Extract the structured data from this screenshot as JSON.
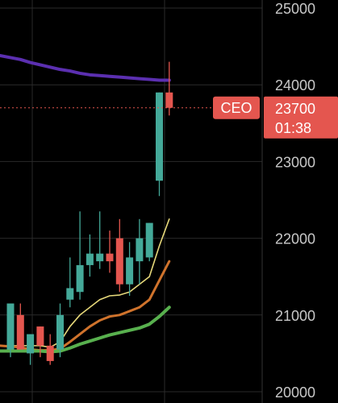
{
  "chart_data": {
    "type": "candlestick",
    "title": "",
    "xlabel": "",
    "ylabel": "",
    "ylim": [
      20000,
      25000
    ],
    "y_ticks": [
      "25000",
      "24000",
      "23000",
      "22000",
      "21000",
      "20000"
    ],
    "grid": true,
    "colors": {
      "up": "#44a999",
      "down": "#e4564f",
      "background": "#000000",
      "grid": "#2a2a2a"
    },
    "candles": [
      {
        "open": 20550,
        "high": 21150,
        "low": 20450,
        "close": 21150
      },
      {
        "open": 21000,
        "high": 21150,
        "low": 20550,
        "close": 20550
      },
      {
        "open": 20500,
        "high": 20750,
        "low": 20350,
        "close": 20750
      },
      {
        "open": 20850,
        "high": 20850,
        "low": 20450,
        "close": 20600
      },
      {
        "open": 20600,
        "high": 20750,
        "low": 20350,
        "close": 20400
      },
      {
        "open": 20550,
        "high": 21150,
        "low": 20450,
        "close": 21000
      },
      {
        "open": 21200,
        "high": 21750,
        "low": 21100,
        "close": 21350
      },
      {
        "open": 21300,
        "high": 22350,
        "low": 21200,
        "close": 21650
      },
      {
        "open": 21650,
        "high": 22050,
        "low": 21500,
        "close": 21800
      },
      {
        "open": 21700,
        "high": 22350,
        "low": 21600,
        "close": 21800
      },
      {
        "open": 21800,
        "high": 22100,
        "low": 21550,
        "close": 21700
      },
      {
        "open": 22000,
        "high": 22250,
        "low": 21300,
        "close": 21400
      },
      {
        "open": 21400,
        "high": 21950,
        "low": 21250,
        "close": 21750
      },
      {
        "open": 21700,
        "high": 22250,
        "low": 21400,
        "close": 22000
      },
      {
        "open": 21750,
        "high": 22200,
        "low": 21700,
        "close": 22200
      },
      {
        "open": 22750,
        "high": 23900,
        "low": 22550,
        "close": 23900
      },
      {
        "open": 23900,
        "high": 24300,
        "low": 23600,
        "close": 23700
      }
    ],
    "series": [
      {
        "color": "#5b2fb0",
        "values": [
          24380,
          24330,
          24290,
          24260,
          24230,
          24200,
          24180,
          24150,
          24130,
          24120,
          24110,
          24100,
          24090,
          24080,
          24070,
          24060,
          24060
        ]
      },
      {
        "color": "#e6d87a",
        "values": [
          20600,
          20600,
          20600,
          20600,
          20580,
          20650,
          20850,
          21000,
          21100,
          21200,
          21250,
          21260,
          21300,
          21400,
          21500,
          21900,
          22250
        ]
      },
      {
        "color": "#d0732c",
        "values": [
          20600,
          20580,
          20550,
          20540,
          20540,
          20560,
          20650,
          20750,
          20850,
          20930,
          20980,
          21000,
          21050,
          21100,
          21200,
          21450,
          21700
        ]
      },
      {
        "color": "#58b04e",
        "values": [
          20530,
          20530,
          20530,
          20530,
          20520,
          20530,
          20570,
          20620,
          20660,
          20700,
          20740,
          20770,
          20800,
          20830,
          20880,
          20980,
          21100
        ]
      }
    ],
    "current_price": {
      "label": "CEO",
      "value": "23700",
      "countdown": "01:38",
      "color": "#e4564f"
    }
  }
}
